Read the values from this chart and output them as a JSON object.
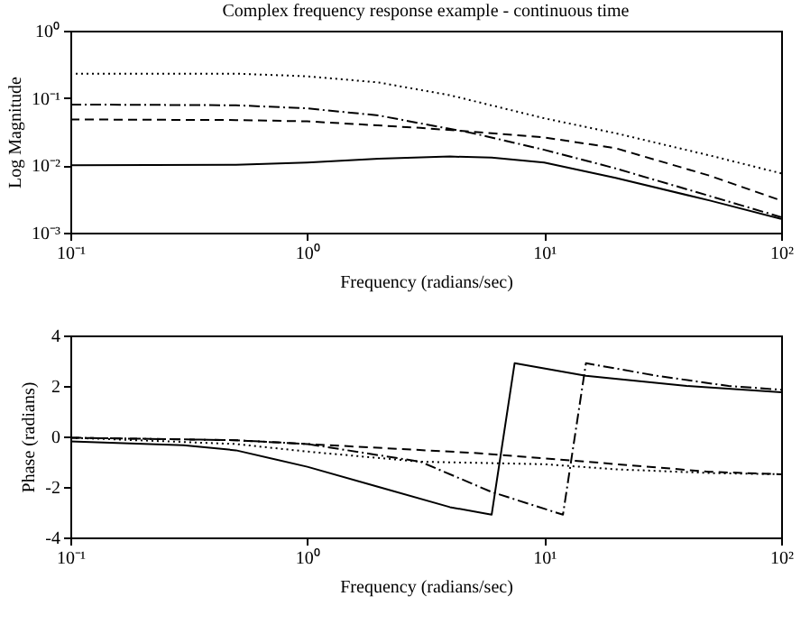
{
  "chart_data": [
    {
      "type": "line",
      "title": "Complex frequency response example - continuous time",
      "xlabel": "Frequency (radians/sec)",
      "ylabel": "Log Magnitude",
      "log": "xy",
      "grid": false,
      "xlim": [
        0.1,
        100
      ],
      "xticks": [
        {
          "value": 0.1,
          "label": "10⁻¹"
        },
        {
          "value": 1,
          "label": "10⁰"
        },
        {
          "value": 10,
          "label": "10¹"
        },
        {
          "value": 100,
          "label": "10²"
        }
      ],
      "ylim": [
        0.001,
        1
      ],
      "yticks": [
        {
          "value": 0.001,
          "label": "10⁻³"
        },
        {
          "value": 0.01,
          "label": "10⁻²"
        },
        {
          "value": 0.1,
          "label": "10⁻¹"
        },
        {
          "value": 1,
          "label": "10⁰"
        }
      ],
      "series": [
        {
          "color": "#000000",
          "line_style": "solid",
          "x": [
            0.1,
            0.5,
            1,
            2,
            4,
            6,
            10,
            20,
            50,
            100
          ],
          "values": [
            0.01,
            0.0102,
            0.011,
            0.0125,
            0.0135,
            0.013,
            0.011,
            0.0065,
            0.003,
            0.0016
          ]
        },
        {
          "color": "#000000",
          "line_style": "dashed",
          "x": [
            0.1,
            0.5,
            1,
            3,
            6,
            10,
            20,
            50,
            100
          ],
          "values": [
            0.048,
            0.047,
            0.045,
            0.036,
            0.03,
            0.026,
            0.018,
            0.007,
            0.003
          ]
        },
        {
          "color": "#000000",
          "line_style": "dotted",
          "x": [
            0.1,
            0.5,
            1,
            2,
            4,
            10,
            20,
            50,
            100
          ],
          "values": [
            0.23,
            0.23,
            0.21,
            0.17,
            0.11,
            0.05,
            0.03,
            0.014,
            0.0076
          ]
        },
        {
          "color": "#000000",
          "line_style": "dashdot",
          "x": [
            0.1,
            0.5,
            1,
            2,
            5,
            10,
            20,
            50,
            100
          ],
          "values": [
            0.08,
            0.078,
            0.07,
            0.055,
            0.03,
            0.017,
            0.009,
            0.0035,
            0.0017
          ]
        }
      ]
    },
    {
      "type": "line",
      "xlabel": "Frequency (radians/sec)",
      "ylabel": "Phase (radians)",
      "log": "x",
      "grid": false,
      "xlim": [
        0.1,
        100
      ],
      "xticks": [
        {
          "value": 0.1,
          "label": "10⁻¹"
        },
        {
          "value": 1,
          "label": "10⁰"
        },
        {
          "value": 10,
          "label": "10¹"
        },
        {
          "value": 100,
          "label": "10²"
        }
      ],
      "ylim": [
        -4,
        4
      ],
      "yticks": [
        -4,
        -2,
        0,
        2,
        4
      ],
      "series": [
        {
          "color": "#000000",
          "line_style": "solid",
          "x": [
            0.1,
            0.3,
            0.5,
            1,
            2,
            4,
            6,
            7.5,
            15,
            40,
            100
          ],
          "values": [
            -0.2,
            -0.35,
            -0.55,
            -1.2,
            -2.0,
            -2.8,
            -3.1,
            2.9,
            2.4,
            2.0,
            1.75
          ]
        },
        {
          "color": "#000000",
          "line_style": "dashed",
          "x": [
            0.1,
            0.5,
            1,
            5,
            15,
            50,
            100
          ],
          "values": [
            -0.05,
            -0.15,
            -0.3,
            -0.65,
            -1.0,
            -1.4,
            -1.5
          ]
        },
        {
          "color": "#000000",
          "line_style": "dotted",
          "x": [
            0.1,
            0.5,
            1,
            3,
            10,
            20,
            50,
            100
          ],
          "values": [
            -0.05,
            -0.3,
            -0.6,
            -1.0,
            -1.1,
            -1.3,
            -1.45,
            -1.5
          ]
        },
        {
          "color": "#000000",
          "line_style": "dashdot",
          "x": [
            0.1,
            0.5,
            1,
            3,
            6,
            12,
            15,
            30,
            60,
            100
          ],
          "values": [
            -0.05,
            -0.15,
            -0.3,
            -1.0,
            -2.2,
            -3.1,
            2.9,
            2.4,
            2.0,
            1.85
          ]
        }
      ]
    }
  ]
}
